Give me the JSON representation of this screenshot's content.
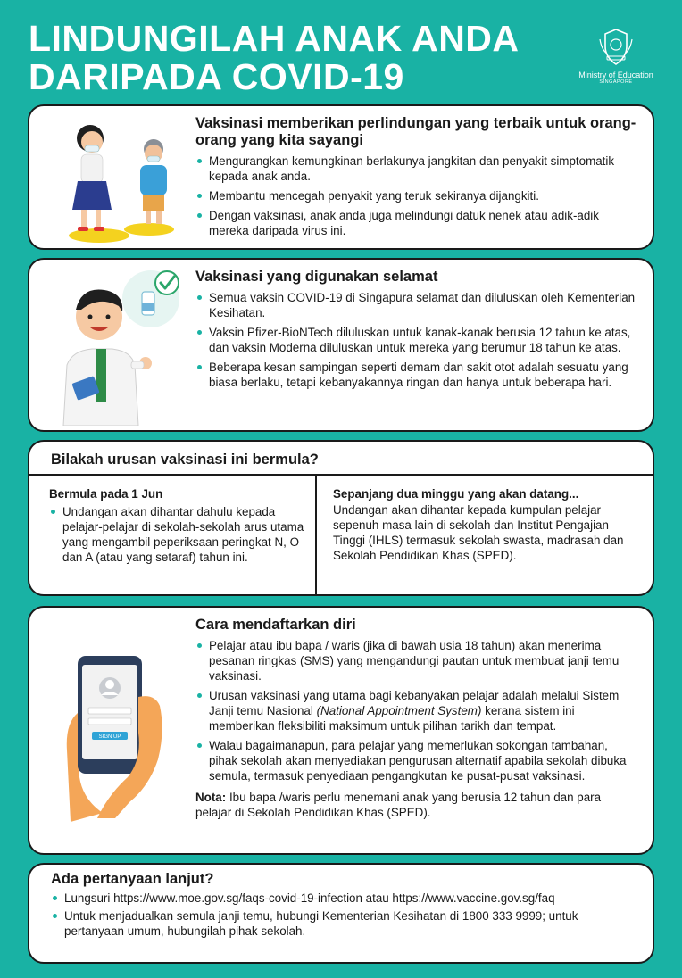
{
  "header": {
    "title_line1": "LINDUNGILAH ANAK ANDA",
    "title_line2": "DARIPADA COVID-19",
    "logo_line1": "Ministry of Education",
    "logo_line2": "SINGAPORE"
  },
  "section1": {
    "heading": "Vaksinasi memberikan perlindungan yang terbaik untuk orang-orang yang kita sayangi",
    "bullets": [
      "Mengurangkan kemungkinan berlakunya jangkitan dan penyakit simptomatik kepada anak anda.",
      "Membantu mencegah penyakit yang teruk sekiranya dijangkiti.",
      "Dengan vaksinasi, anak anda juga melindungi datuk nenek atau adik-adik mereka daripada virus ini."
    ]
  },
  "section2": {
    "heading": "Vaksinasi yang digunakan selamat",
    "bullets": [
      "Semua vaksin COVID-19 di Singapura selamat dan diluluskan oleh Kementerian Kesihatan.",
      "Vaksin Pfizer-BioNTech diluluskan untuk kanak-kanak berusia 12 tahun ke atas, dan vaksin Moderna diluluskan untuk mereka yang berumur 18 tahun ke atas.",
      "Beberapa kesan sampingan seperti demam dan sakit otot adalah sesuatu yang biasa berlaku, tetapi kebanyakannya ringan dan hanya untuk beberapa hari."
    ]
  },
  "section3": {
    "heading": "Bilakah urusan vaksinasi ini bermula?",
    "col1_title": "Bermula pada 1 Jun",
    "col1_bullet": "Undangan akan dihantar dahulu kepada pelajar-pelajar di sekolah-sekolah arus utama yang mengambil peperiksaan peringkat N, O dan A (atau yang setaraf) tahun ini.",
    "col2_title": "Sepanjang dua minggu yang akan datang...",
    "col2_text": "Undangan akan dihantar kepada kumpulan pelajar sepenuh masa lain di sekolah dan Institut Pengajian Tinggi (IHLS) termasuk sekolah swasta, madrasah dan Sekolah Pendidikan Khas (SPED)."
  },
  "section4": {
    "heading": "Cara mendaftarkan diri",
    "bullet1": "Pelajar atau ibu bapa / waris (jika di bawah usia 18 tahun) akan menerima pesanan ringkas (SMS) yang mengandungi pautan untuk membuat janji temu vaksinasi.",
    "bullet2_pre": "Urusan vaksinasi yang utama bagi kebanyakan pelajar adalah melalui Sistem Janji temu Nasional ",
    "bullet2_italic": "(National Appointment System)",
    "bullet2_post": " kerana sistem ini memberikan fleksibiliti maksimum untuk pilihan tarikh dan tempat.",
    "bullet3": "Walau bagaimanapun, para pelajar yang memerlukan sokongan tambahan, pihak sekolah akan menyediakan pengurusan alternatif apabila sekolah dibuka semula, termasuk penyediaan pengangkutan ke pusat-pusat vaksinasi.",
    "note_label": "Nota:",
    "note_text": " Ibu bapa /waris perlu menemani anak yang berusia 12 tahun dan para pelajar di Sekolah Pendidikan Khas (SPED).",
    "phone_button": "SIGN UP"
  },
  "section5": {
    "heading": "Ada pertanyaan lanjut?",
    "bullets": [
      "Lungsuri https://www.moe.gov.sg/faqs-covid-19-infection atau https://www.vaccine.gov.sg/faq",
      "Untuk menjadualkan semula janji temu, hubungi Kementerian Kesihatan di 1800 333 9999; untuk pertanyaan umum, hubungilah pihak sekolah."
    ]
  },
  "colors": {
    "background": "#19b2a4",
    "border": "#1a1a1a",
    "accent": "#19b2a4"
  }
}
